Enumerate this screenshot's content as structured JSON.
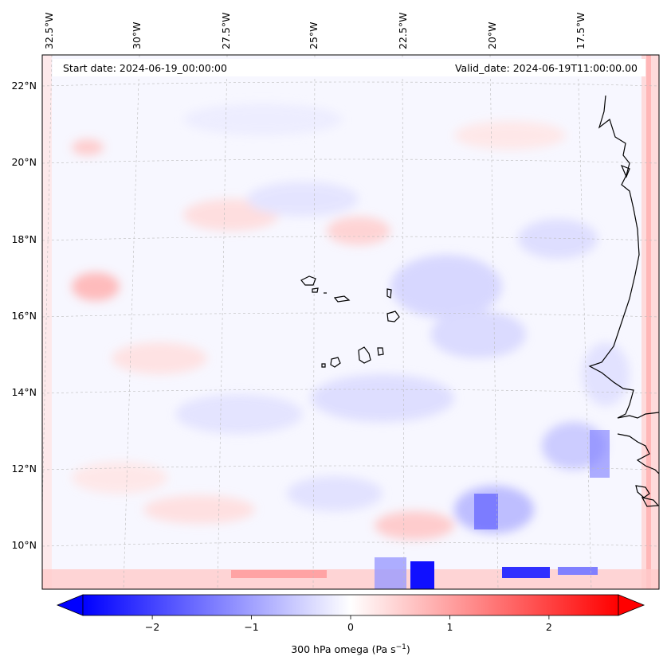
{
  "header": {
    "start_date": "Start date: 2024-06-19_00:00:00",
    "valid_date": "Valid_date: 2024-06-19T11:00:00.00"
  },
  "map": {
    "lon_labels": [
      "32.5°W",
      "30°W",
      "27.5°W",
      "25°W",
      "22.5°W",
      "20°W",
      "17.5°W"
    ],
    "lat_labels": [
      "22°N",
      "20°N",
      "18°N",
      "16°N",
      "14°N",
      "12°N",
      "10°N"
    ],
    "land_color": "#1a1a1a",
    "grid_color": "#bbbbbb"
  },
  "colorbar": {
    "label_main": "300 hPa omega (Pa s",
    "label_sup": "−1",
    "label_end": ")",
    "ticks": [
      "−2",
      "−1",
      "0",
      "1",
      "2"
    ],
    "vmin": -2.7,
    "vmax": 2.7,
    "tick_values": [
      -2,
      -1,
      0,
      1,
      2
    ],
    "cmap": "bwr",
    "neg_color": "#0000ff",
    "zero_color": "#ffffff",
    "pos_color": "#ff0000"
  }
}
